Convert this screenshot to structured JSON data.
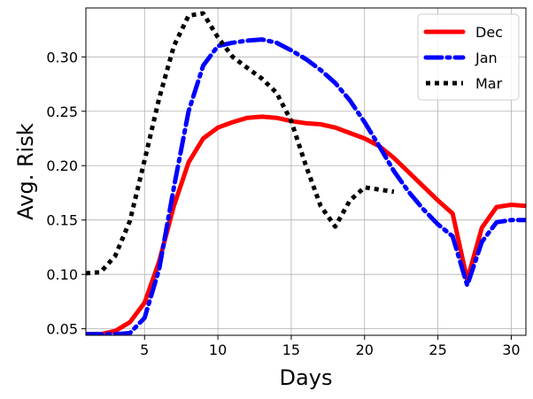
{
  "chart_data": {
    "type": "line",
    "title": "",
    "xlabel": "Days",
    "ylabel": "Avg. Risk",
    "xlim": [
      1,
      31
    ],
    "ylim": [
      0.044,
      0.345
    ],
    "xticks": [
      5,
      10,
      15,
      20,
      25,
      30
    ],
    "yticks": [
      0.05,
      0.1,
      0.15,
      0.2,
      0.25,
      0.3
    ],
    "xtick_labels": [
      "5",
      "10",
      "15",
      "20",
      "25",
      "30"
    ],
    "ytick_labels": [
      "0.05",
      "0.10",
      "0.15",
      "0.20",
      "0.25",
      "0.30"
    ],
    "grid": true,
    "legend_position": "top-right",
    "series": [
      {
        "name": "Dec",
        "color": "#ff0000",
        "linestyle": "solid",
        "x": [
          1,
          2,
          3,
          4,
          5,
          6,
          7,
          8,
          9,
          10,
          11,
          12,
          13,
          14,
          15,
          16,
          17,
          18,
          19,
          20,
          21,
          22,
          23,
          24,
          25,
          26,
          27,
          28,
          29,
          30,
          31
        ],
        "y": [
          0.045,
          0.045,
          0.048,
          0.056,
          0.074,
          0.112,
          0.163,
          0.203,
          0.225,
          0.235,
          0.24,
          0.244,
          0.245,
          0.244,
          0.241,
          0.239,
          0.238,
          0.235,
          0.23,
          0.225,
          0.218,
          0.207,
          0.194,
          0.181,
          0.168,
          0.156,
          0.095,
          0.143,
          0.162,
          0.164,
          0.163
        ]
      },
      {
        "name": "Jan",
        "color": "#0000ff",
        "linestyle": "dashdot",
        "x": [
          1,
          2,
          3,
          4,
          5,
          6,
          7,
          8,
          9,
          10,
          11,
          12,
          13,
          14,
          15,
          16,
          17,
          18,
          19,
          20,
          21,
          22,
          23,
          24,
          25,
          26,
          27,
          28,
          29,
          30,
          31
        ],
        "y": [
          0.045,
          0.045,
          0.045,
          0.046,
          0.06,
          0.105,
          0.18,
          0.25,
          0.292,
          0.31,
          0.313,
          0.315,
          0.316,
          0.313,
          0.306,
          0.298,
          0.288,
          0.276,
          0.26,
          0.24,
          0.218,
          0.195,
          0.176,
          0.16,
          0.146,
          0.135,
          0.09,
          0.13,
          0.148,
          0.15,
          0.15
        ]
      },
      {
        "name": "Mar",
        "color": "#000000",
        "linestyle": "dotted",
        "x": [
          1,
          2,
          3,
          4,
          5,
          6,
          7,
          8,
          9,
          10,
          11,
          12,
          13,
          14,
          15,
          16,
          17,
          18,
          19,
          20,
          21,
          22
        ],
        "y": [
          0.101,
          0.102,
          0.117,
          0.149,
          0.205,
          0.262,
          0.31,
          0.338,
          0.34,
          0.318,
          0.3,
          0.29,
          0.28,
          0.267,
          0.241,
          0.2,
          0.163,
          0.144,
          0.168,
          0.18,
          0.178,
          0.176
        ]
      }
    ]
  }
}
